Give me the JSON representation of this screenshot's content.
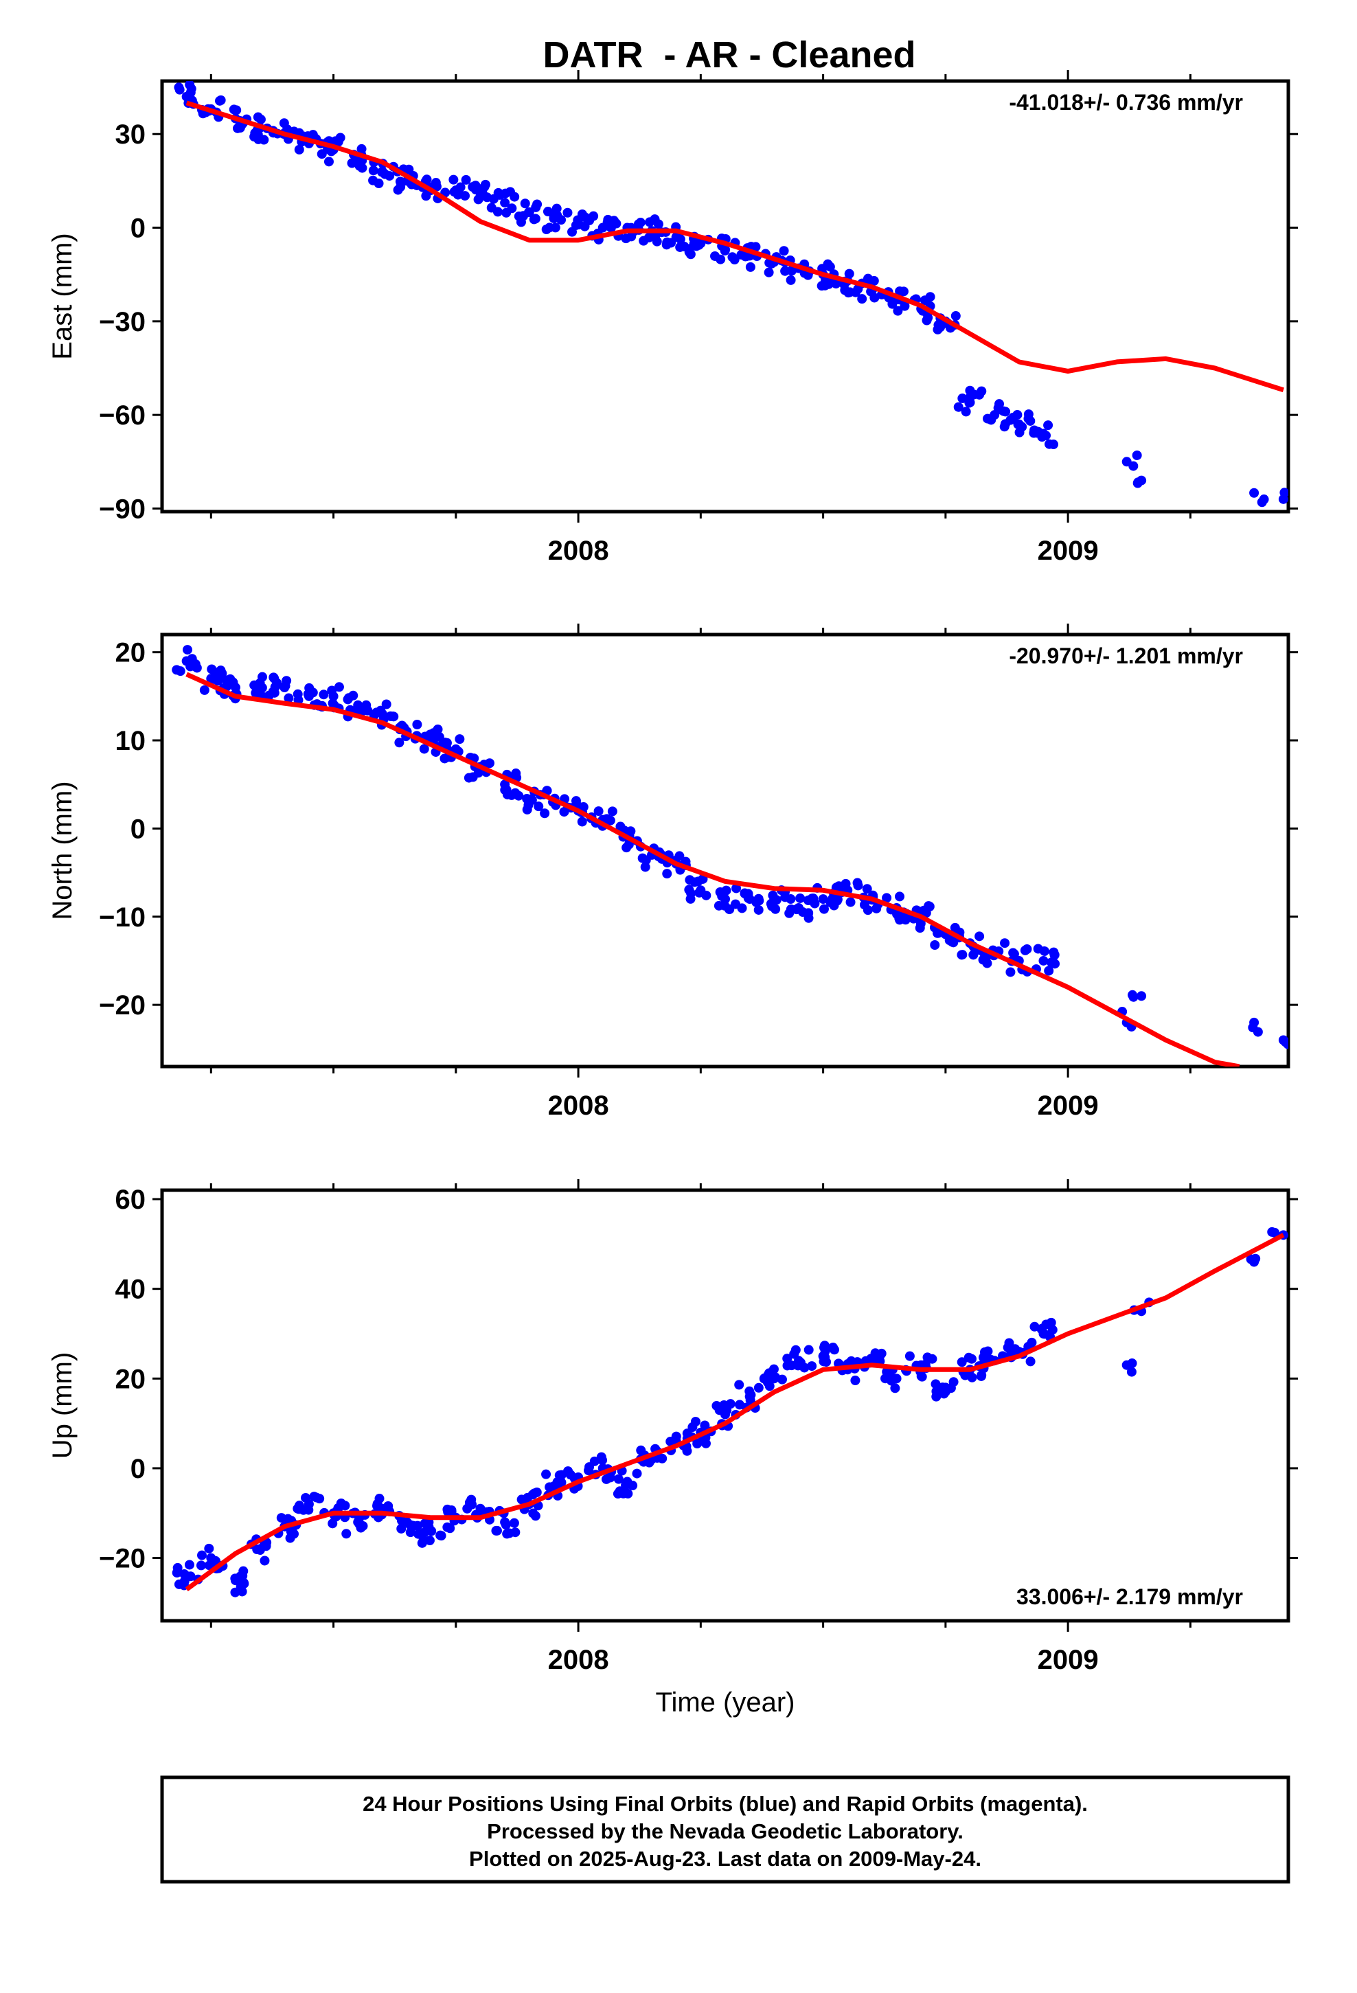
{
  "title": "DATR  - AR - Cleaned",
  "colors": {
    "points": "#0000ff",
    "fit": "#ff0000",
    "frame": "#000000"
  },
  "caption": {
    "line1": "24 Hour Positions Using Final Orbits (blue) and Rapid Orbits (magenta).",
    "line2": "Processed by the Nevada Geodetic Laboratory.",
    "line3": "Plotted on 2025-Aug-23. Last data on 2009-May-24."
  },
  "chart_data": [
    {
      "type": "scatter",
      "ylabel": "East (mm)",
      "xlabel": "",
      "rate": "-41.018+/- 0.736 mm/yr",
      "rate_position": "top-right",
      "xlim": [
        2007.15,
        2009.45
      ],
      "ylim": [
        -91,
        47
      ],
      "yticks": [
        "30",
        "0",
        "−30",
        "−60",
        "−90"
      ],
      "ytick_values": [
        30,
        0,
        -30,
        -60,
        -90
      ],
      "xticks": [
        "2008",
        "2009"
      ],
      "xtick_values": [
        2008,
        2009
      ],
      "series": [
        {
          "kind": "points",
          "x": [
            2007.2,
            2007.25,
            2007.3,
            2007.35,
            2007.4,
            2007.45,
            2007.5,
            2007.55,
            2007.6,
            2007.65,
            2007.7,
            2007.75,
            2007.8,
            2007.85,
            2007.9,
            2007.95,
            2008.0,
            2008.05,
            2008.1,
            2008.15,
            2008.2,
            2008.25,
            2008.3,
            2008.35,
            2008.4,
            2008.45,
            2008.5,
            2008.55,
            2008.6,
            2008.65,
            2008.7,
            2008.75,
            2008.8,
            2008.85,
            2008.9,
            2008.95,
            2009.12,
            2009.15,
            2009.38,
            2009.44
          ],
          "y": [
            42,
            38,
            35,
            32,
            30,
            27,
            25,
            22,
            18,
            15,
            13,
            12,
            10,
            8,
            5,
            3,
            1,
            0,
            0,
            -1,
            -3,
            -5,
            -7,
            -9,
            -11,
            -13,
            -15,
            -17,
            -20,
            -23,
            -26,
            -30,
            -56,
            -60,
            -63,
            -66,
            -75,
            -81,
            -85,
            -87
          ]
        },
        {
          "kind": "fit",
          "x": [
            2007.2,
            2007.3,
            2007.4,
            2007.5,
            2007.6,
            2007.7,
            2007.8,
            2007.9,
            2008.0,
            2008.1,
            2008.2,
            2008.3,
            2008.4,
            2008.5,
            2008.6,
            2008.7,
            2008.8,
            2008.9,
            2009.0,
            2009.1,
            2009.2,
            2009.3,
            2009.44
          ],
          "y": [
            40,
            35,
            30,
            26,
            21,
            12,
            2,
            -4,
            -4,
            -1,
            -1,
            -5,
            -10,
            -15,
            -19,
            -25,
            -34,
            -43,
            -46,
            -43,
            -42,
            -45,
            -52
          ]
        }
      ]
    },
    {
      "type": "scatter",
      "ylabel": "North (mm)",
      "xlabel": "",
      "rate": "-20.970+/- 1.201 mm/yr",
      "rate_position": "top-right",
      "xlim": [
        2007.15,
        2009.45
      ],
      "ylim": [
        -27,
        22
      ],
      "yticks": [
        "20",
        "10",
        "0",
        "−10",
        "−20"
      ],
      "ytick_values": [
        20,
        10,
        0,
        -10,
        -20
      ],
      "xticks": [
        "2008",
        "2009"
      ],
      "xtick_values": [
        2008,
        2009
      ],
      "series": [
        {
          "kind": "points",
          "x": [
            2007.2,
            2007.25,
            2007.3,
            2007.35,
            2007.4,
            2007.45,
            2007.5,
            2007.55,
            2007.6,
            2007.65,
            2007.7,
            2007.75,
            2007.8,
            2007.85,
            2007.9,
            2007.95,
            2008.0,
            2008.05,
            2008.1,
            2008.15,
            2008.2,
            2008.25,
            2008.3,
            2008.35,
            2008.4,
            2008.45,
            2008.5,
            2008.55,
            2008.6,
            2008.65,
            2008.7,
            2008.75,
            2008.8,
            2008.85,
            2008.9,
            2008.95,
            2009.12,
            2009.15,
            2009.38,
            2009.44
          ],
          "y": [
            19,
            17,
            16,
            16,
            16,
            15,
            15,
            14,
            13,
            11,
            10,
            9,
            7,
            5,
            3,
            3,
            2,
            1,
            -1,
            -3,
            -4,
            -7,
            -8,
            -8,
            -8,
            -9,
            -8,
            -7,
            -8,
            -9,
            -10,
            -12,
            -13,
            -14,
            -15,
            -15,
            -22,
            -19,
            -22,
            -24
          ]
        },
        {
          "kind": "fit",
          "x": [
            2007.2,
            2007.3,
            2007.4,
            2007.5,
            2007.6,
            2007.7,
            2007.8,
            2007.9,
            2008.0,
            2008.1,
            2008.2,
            2008.3,
            2008.4,
            2008.5,
            2008.6,
            2008.7,
            2008.8,
            2008.9,
            2009.0,
            2009.1,
            2009.2,
            2009.3,
            2009.35
          ],
          "y": [
            17.5,
            15,
            14.2,
            13.5,
            12,
            9.5,
            7,
            4.5,
            2,
            -1,
            -4,
            -6,
            -6.8,
            -7,
            -8,
            -10,
            -13,
            -15.5,
            -18,
            -21,
            -24,
            -26.5,
            -27
          ]
        }
      ]
    },
    {
      "type": "scatter",
      "ylabel": "Up (mm)",
      "xlabel": "Time (year)",
      "rate": "33.006+/- 2.179 mm/yr",
      "rate_position": "bottom-right",
      "xlim": [
        2007.15,
        2009.45
      ],
      "ylim": [
        -34,
        62
      ],
      "yticks": [
        "60",
        "40",
        "20",
        "0",
        "−20"
      ],
      "ytick_values": [
        60,
        40,
        20,
        0,
        -20
      ],
      "xticks": [
        "2008",
        "2009"
      ],
      "xtick_values": [
        2008,
        2009
      ],
      "series": [
        {
          "kind": "points",
          "x": [
            2007.2,
            2007.25,
            2007.3,
            2007.35,
            2007.4,
            2007.45,
            2007.5,
            2007.55,
            2007.6,
            2007.65,
            2007.7,
            2007.75,
            2007.8,
            2007.85,
            2007.9,
            2007.95,
            2008.0,
            2008.05,
            2008.1,
            2008.15,
            2008.2,
            2008.25,
            2008.3,
            2008.35,
            2008.4,
            2008.45,
            2008.5,
            2008.55,
            2008.6,
            2008.65,
            2008.7,
            2008.75,
            2008.8,
            2008.85,
            2008.9,
            2008.95,
            2009.12,
            2009.15,
            2009.38,
            2009.44
          ],
          "y": [
            -24,
            -20,
            -25,
            -18,
            -13,
            -8,
            -10,
            -12,
            -9,
            -12,
            -14,
            -11,
            -9,
            -12,
            -8,
            -4,
            -2,
            0,
            -3,
            2,
            6,
            8,
            12,
            16,
            20,
            24,
            25,
            22,
            24,
            20,
            23,
            18,
            22,
            24,
            26,
            30,
            23,
            35,
            46,
            52
          ]
        },
        {
          "kind": "fit",
          "x": [
            2007.2,
            2007.3,
            2007.4,
            2007.5,
            2007.6,
            2007.7,
            2007.8,
            2007.9,
            2008.0,
            2008.1,
            2008.2,
            2008.3,
            2008.4,
            2008.5,
            2008.6,
            2008.7,
            2008.8,
            2008.9,
            2009.0,
            2009.1,
            2009.2,
            2009.3,
            2009.44
          ],
          "y": [
            -27,
            -19,
            -13,
            -10,
            -10,
            -11,
            -11,
            -8,
            -3,
            1,
            5,
            10,
            17,
            22,
            23,
            22,
            22,
            25,
            30,
            34,
            38,
            44,
            52
          ]
        }
      ]
    }
  ]
}
